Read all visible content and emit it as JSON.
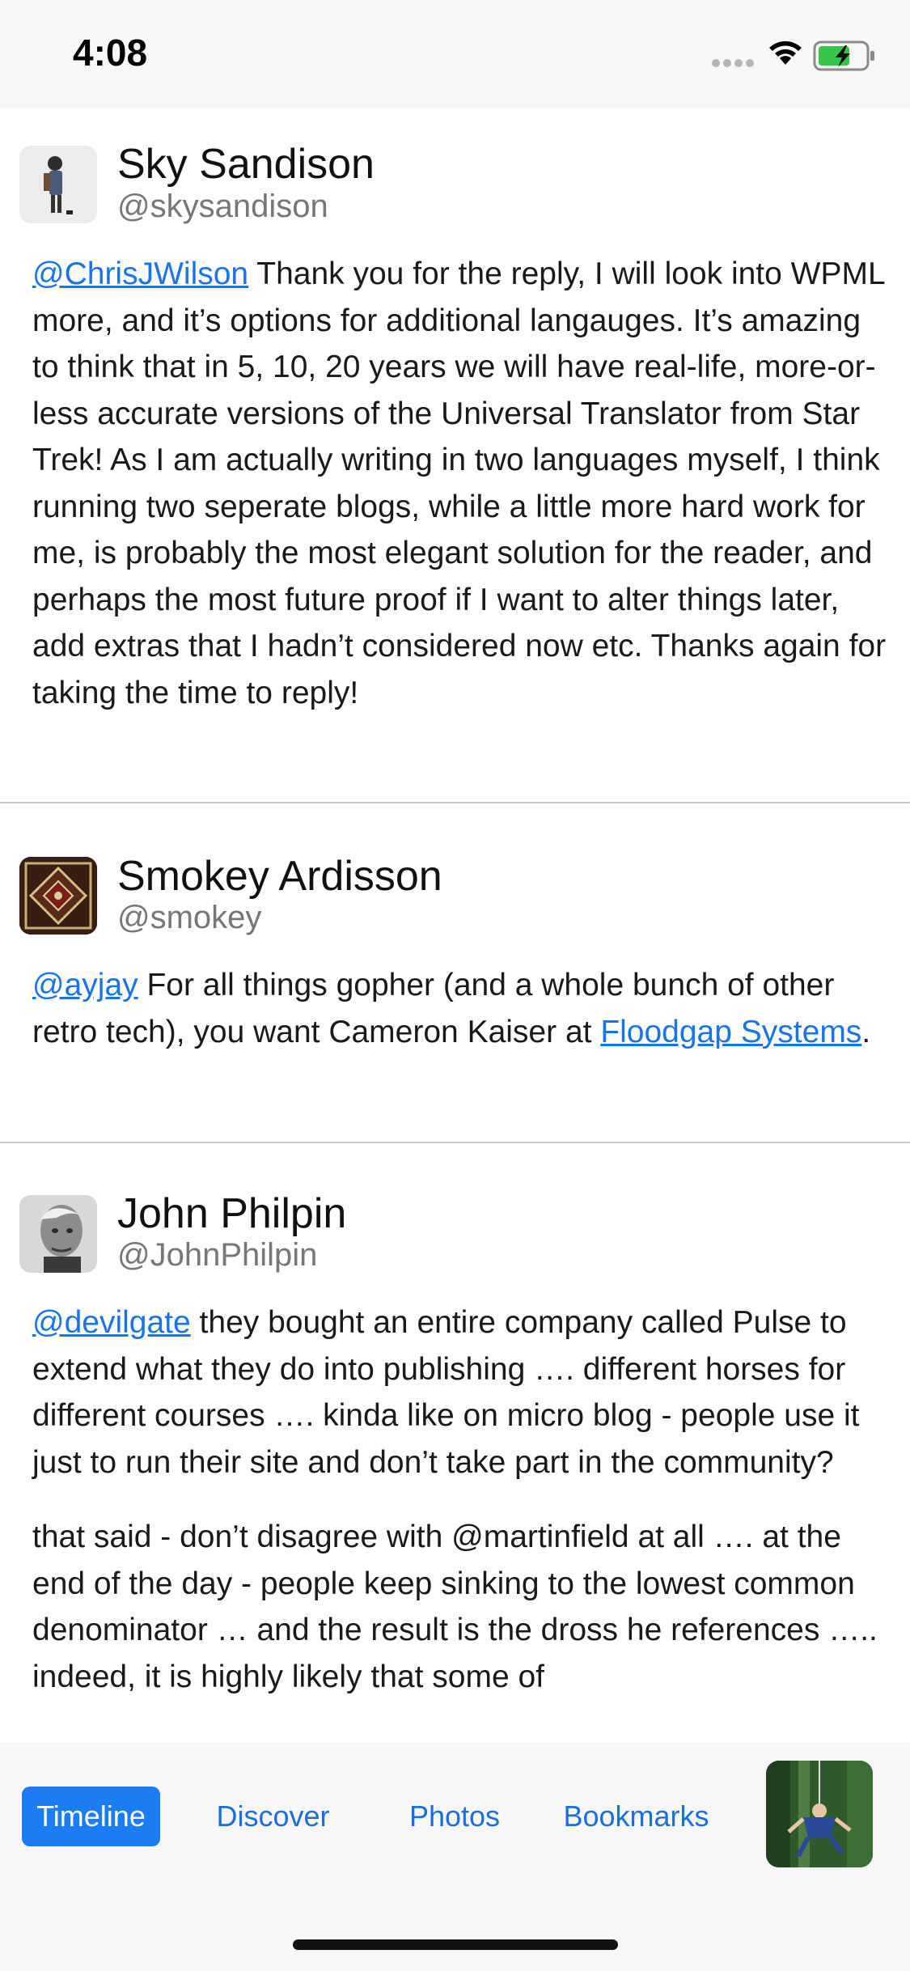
{
  "status_bar": {
    "time": "4:08"
  },
  "colors": {
    "link": "#1a73e8",
    "tab_active_bg": "#1c7cf4",
    "tab_text": "#1a6fe0",
    "battery_fill": "#39c449"
  },
  "posts": [
    {
      "name": "Sky Sandison",
      "handle": "@skysandison",
      "mention": "@ChrisJWilson",
      "text": " Thank you for the reply, I will look into WPML more, and it’s options for additional langauges. It’s amazing to think that in 5, 10, 20 years we will have real-life, more-or-less accurate versions of the Universal Translator from Star Trek! As I am actually writing in two languages myself, I think running two seperate blogs, while a little more hard work for me, is probably the most elegant solution for the reader, and perhaps the most future proof if I want to alter things later, add extras that I hadn’t considered now etc. Thanks again for taking the time to reply!"
    },
    {
      "name": "Smokey Ardisson",
      "handle": "@smokey",
      "mention": "@ayjay",
      "text": " For all things gopher (and a whole bunch of other retro tech), you want Cameron Kaiser at ",
      "link": "Floodgap Systems",
      "text_end": "."
    },
    {
      "name": "John Philpin",
      "handle": "@JohnPhilpin",
      "mention": "@devilgate",
      "text": " they bought an entire company called Pulse to extend what they do into publishing …. different horses for different courses …. kinda like on micro blog - people use it just to run their site and don’t take part in the community?",
      "paragraph2": "that said - don’t disagree with @martinfield at all …. at the end of the day - people keep sinking to the lowest common denominator … and the result is the dross he references ….. indeed, it is highly likely that some of"
    }
  ],
  "tabs": {
    "timeline": "Timeline",
    "discover": "Discover",
    "photos": "Photos",
    "bookmarks": "Bookmarks"
  },
  "icons": {
    "wifi": "wifi-icon",
    "battery": "battery-charging-icon",
    "profile": "profile-avatar"
  }
}
